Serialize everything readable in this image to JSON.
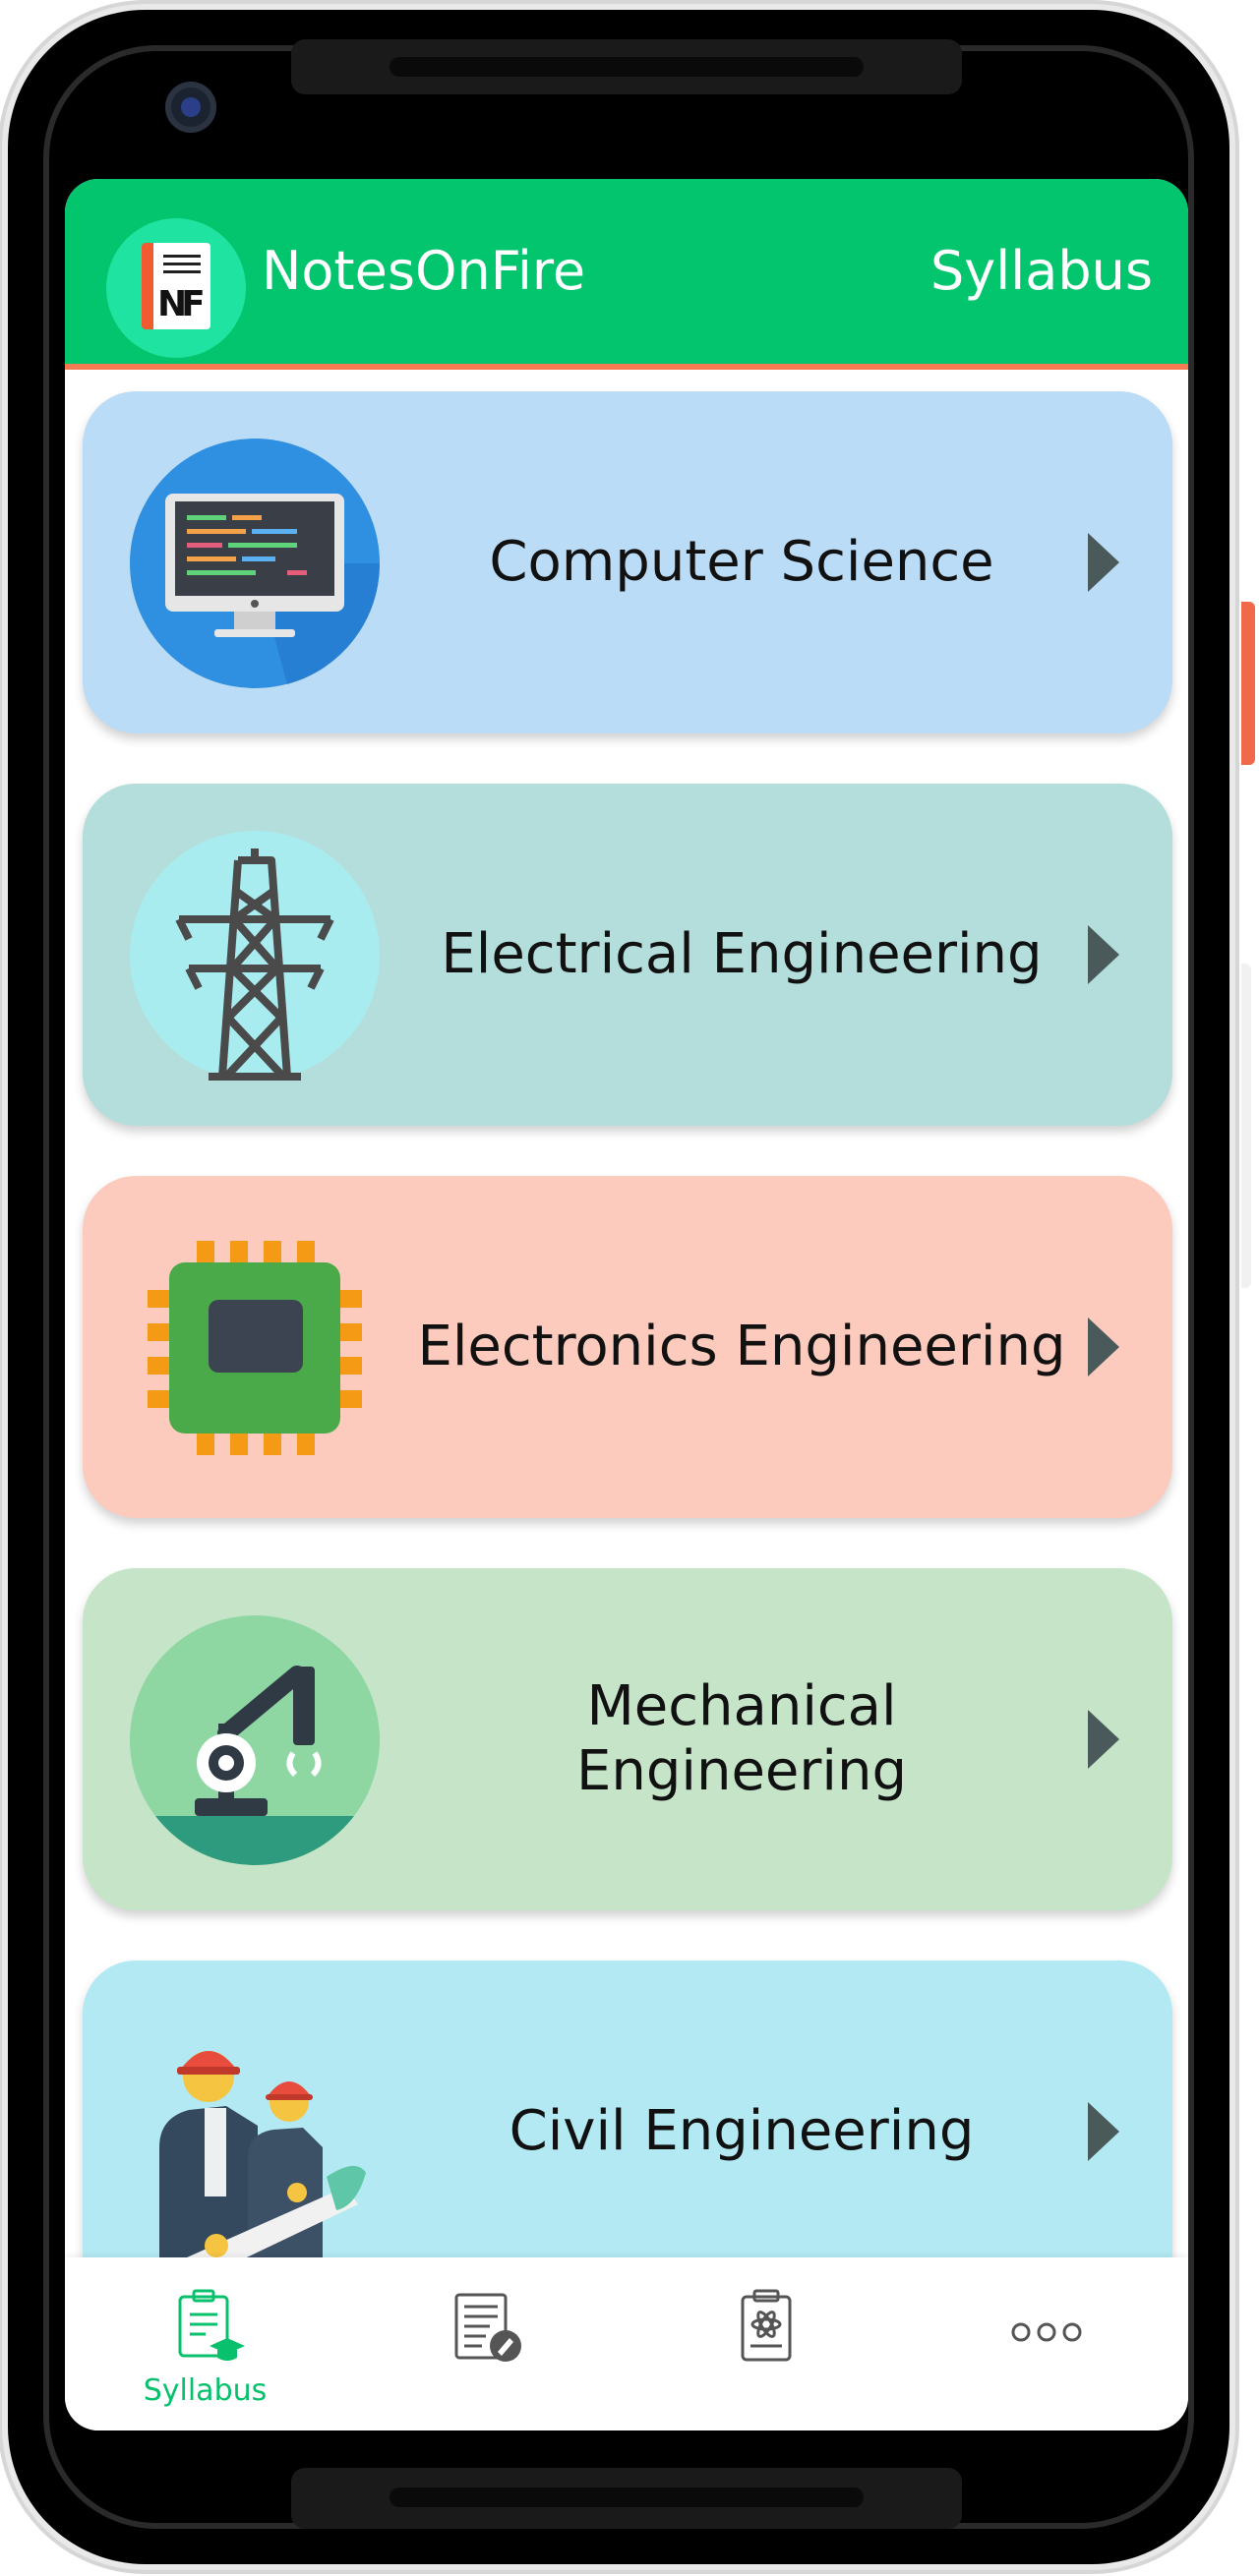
{
  "app": {
    "title": "NotesOnFire",
    "logo_text": "NF",
    "page_label": "Syllabus",
    "colors": {
      "app_bar": "#02c56d",
      "accent": "#f47a52",
      "active_nav": "#09c06c"
    }
  },
  "branches": [
    {
      "label": "Computer Science",
      "icon": "monitor-icon",
      "color": "#bbdcf7"
    },
    {
      "label": "Electrical Engineering",
      "icon": "transmission-tower-icon",
      "color": "#b3dedb"
    },
    {
      "label": "Electronics Engineering",
      "icon": "chip-icon",
      "color": "#fdcbbd"
    },
    {
      "label": "Mechanical Engineering",
      "icon": "robotic-arm-icon",
      "color": "#c6e5c8"
    },
    {
      "label": "Civil Engineering",
      "icon": "engineers-icon",
      "color": "#b2e9f2"
    }
  ],
  "bottom_nav": [
    {
      "label": "Syllabus",
      "icon": "syllabus-clipboard-icon",
      "active": true
    },
    {
      "label": "",
      "icon": "notes-edit-icon",
      "active": false
    },
    {
      "label": "",
      "icon": "science-clipboard-icon",
      "active": false
    },
    {
      "label": "",
      "icon": "more-dots-icon",
      "active": false
    }
  ]
}
